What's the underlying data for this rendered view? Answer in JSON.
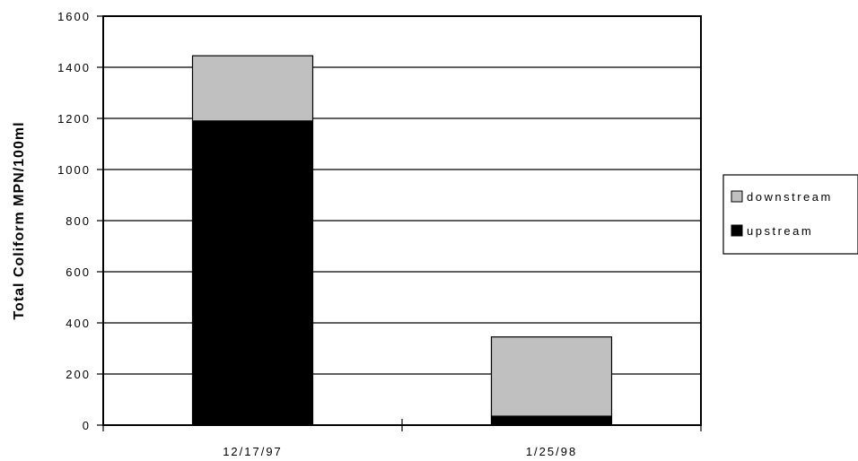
{
  "chart_data": {
    "type": "bar",
    "stacked": true,
    "categories": [
      "12/17/97",
      "1/25/98"
    ],
    "series": [
      {
        "name": "upstream",
        "values": [
          1190,
          35
        ],
        "color": "#000000"
      },
      {
        "name": "downstream",
        "values": [
          255,
          310
        ],
        "color": "#c0c0c0"
      }
    ],
    "ylabel": "Total Coliform MPN/100ml",
    "xlabel": "",
    "ylim": [
      0,
      1600
    ],
    "yticks": [
      0,
      200,
      400,
      600,
      800,
      1000,
      1200,
      1400,
      1600
    ],
    "grid": true,
    "legend_position": "right",
    "legend_order": [
      "downstream",
      "upstream"
    ]
  }
}
